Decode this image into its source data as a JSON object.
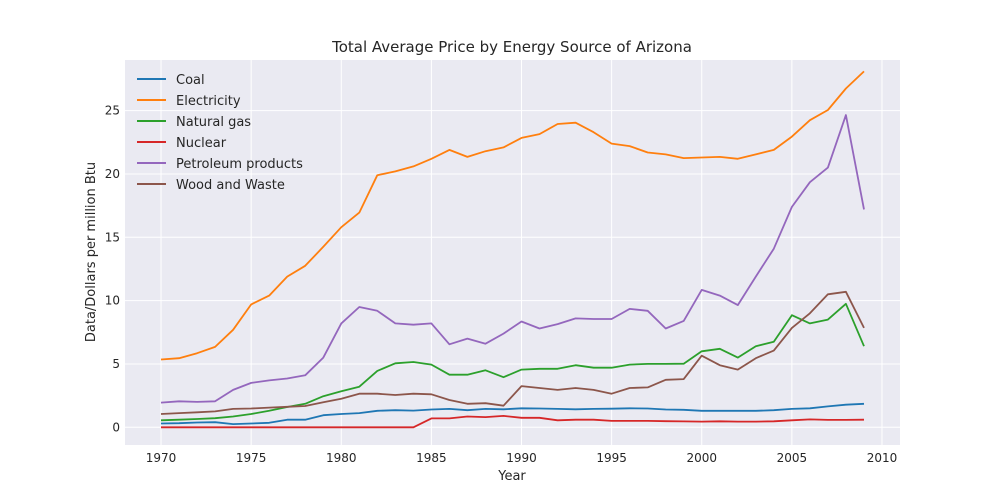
{
  "chart_data": {
    "type": "line",
    "title": "Total Average Price by Energy Source of Arizona",
    "xlabel": "Year",
    "ylabel": "Data/Dollars per million Btu",
    "xlim": [
      1968,
      2011
    ],
    "ylim": [
      -1.4,
      29.0
    ],
    "xticks": [
      1970,
      1975,
      1980,
      1985,
      1990,
      1995,
      2000,
      2005,
      2010
    ],
    "yticks": [
      0,
      5,
      10,
      15,
      20,
      25
    ],
    "grid": true,
    "legend_position": "top-left",
    "x": [
      1970,
      1971,
      1972,
      1973,
      1974,
      1975,
      1976,
      1977,
      1978,
      1979,
      1980,
      1981,
      1982,
      1983,
      1984,
      1985,
      1986,
      1987,
      1988,
      1989,
      1990,
      1991,
      1992,
      1993,
      1994,
      1995,
      1996,
      1997,
      1998,
      1999,
      2000,
      2001,
      2002,
      2003,
      2004,
      2005,
      2006,
      2007,
      2008,
      2009
    ],
    "series": [
      {
        "name": "Coal",
        "color": "#1f77b4",
        "values": [
          0.3,
          0.32,
          0.38,
          0.4,
          0.25,
          0.3,
          0.35,
          0.6,
          0.6,
          0.95,
          1.05,
          1.12,
          1.3,
          1.35,
          1.32,
          1.4,
          1.45,
          1.35,
          1.45,
          1.42,
          1.5,
          1.48,
          1.45,
          1.42,
          1.45,
          1.47,
          1.5,
          1.48,
          1.4,
          1.38,
          1.3,
          1.3,
          1.3,
          1.3,
          1.35,
          1.45,
          1.5,
          1.65,
          1.78,
          1.85
        ]
      },
      {
        "name": "Electricity",
        "color": "#ff7f0e",
        "values": [
          5.35,
          5.45,
          5.85,
          6.35,
          7.7,
          9.7,
          10.4,
          11.9,
          12.75,
          14.25,
          15.8,
          16.95,
          19.9,
          20.2,
          20.6,
          21.2,
          21.9,
          21.35,
          21.8,
          22.1,
          22.85,
          23.15,
          23.95,
          24.05,
          23.3,
          22.4,
          22.2,
          21.7,
          21.55,
          21.25,
          21.3,
          21.35,
          21.2,
          21.55,
          21.9,
          22.95,
          24.25,
          25.05,
          26.75,
          28.1
        ]
      },
      {
        "name": "Natural gas",
        "color": "#2ca02c",
        "values": [
          0.55,
          0.6,
          0.65,
          0.72,
          0.85,
          1.05,
          1.3,
          1.6,
          1.85,
          2.45,
          2.85,
          3.2,
          4.45,
          5.05,
          5.15,
          4.95,
          4.15,
          4.15,
          4.5,
          3.95,
          4.55,
          4.62,
          4.62,
          4.9,
          4.7,
          4.7,
          4.95,
          5.0,
          5.0,
          5.02,
          6.0,
          6.2,
          5.5,
          6.4,
          6.75,
          8.85,
          8.2,
          8.5,
          9.75,
          6.4
        ]
      },
      {
        "name": "Nuclear",
        "color": "#d62728",
        "values": [
          0.0,
          0.0,
          0.0,
          0.0,
          0.0,
          0.0,
          0.0,
          0.0,
          0.0,
          0.0,
          0.0,
          0.0,
          0.0,
          0.0,
          0.0,
          0.7,
          0.7,
          0.85,
          0.8,
          0.9,
          0.75,
          0.75,
          0.55,
          0.6,
          0.6,
          0.5,
          0.5,
          0.5,
          0.48,
          0.46,
          0.45,
          0.47,
          0.45,
          0.45,
          0.47,
          0.55,
          0.62,
          0.58,
          0.58,
          0.6
        ]
      },
      {
        "name": "Petroleum products",
        "color": "#9467bd",
        "values": [
          1.95,
          2.05,
          2.0,
          2.05,
          2.95,
          3.5,
          3.7,
          3.85,
          4.1,
          5.5,
          8.2,
          9.5,
          9.2,
          8.2,
          8.1,
          8.2,
          6.55,
          7.0,
          6.6,
          7.4,
          8.35,
          7.8,
          8.15,
          8.6,
          8.55,
          8.55,
          9.35,
          9.2,
          7.8,
          8.4,
          10.85,
          10.4,
          9.65,
          11.9,
          14.1,
          17.4,
          19.35,
          20.5,
          24.65,
          17.2
        ]
      },
      {
        "name": "Wood and Waste",
        "color": "#8c564b",
        "values": [
          1.05,
          1.12,
          1.18,
          1.25,
          1.45,
          1.48,
          1.55,
          1.62,
          1.68,
          1.98,
          2.25,
          2.65,
          2.65,
          2.55,
          2.65,
          2.6,
          2.15,
          1.85,
          1.9,
          1.7,
          3.25,
          3.1,
          2.95,
          3.1,
          2.95,
          2.65,
          3.1,
          3.15,
          3.75,
          3.8,
          5.65,
          4.9,
          4.55,
          5.45,
          6.05,
          7.85,
          9.0,
          10.5,
          10.7,
          7.85
        ]
      }
    ]
  }
}
